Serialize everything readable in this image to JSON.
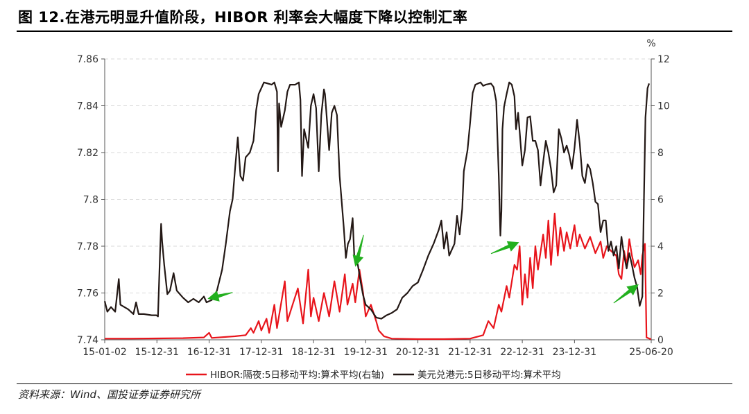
{
  "figure": {
    "title": "图 12.在港元明显升值阶段，HIBOR 利率会大幅度下降以控制汇率",
    "source": "资料来源：Wind、国投证券证券研究所"
  },
  "chart_data": {
    "type": "line",
    "x_tick_labels": [
      "15-01-02",
      "15-12-31",
      "16-12-31",
      "17-12-31",
      "18-12-31",
      "19-12-31",
      "20-12-31",
      "21-12-31",
      "22-12-31",
      "23-12-31",
      "25-06-20"
    ],
    "x_ticks": [
      2015.0,
      2016.0,
      2017.0,
      2018.0,
      2019.0,
      2020.0,
      2021.0,
      2022.0,
      2023.0,
      2024.0,
      2025.47
    ],
    "x_range": [
      2015.0,
      2025.47
    ],
    "y_left": {
      "range": [
        7.74,
        7.86
      ],
      "tick_labels": [
        "7.74",
        "7.76",
        "7.78",
        "7.8",
        "7.82",
        "7.84",
        "7.86"
      ]
    },
    "y_right": {
      "range": [
        0,
        12
      ],
      "unit": "%",
      "tick_labels": [
        "0",
        "2",
        "4",
        "6",
        "8",
        "10",
        "12"
      ]
    },
    "grid": "horizontal dashed",
    "legend_position": "bottom",
    "series": [
      {
        "name": "HIBOR:隔夜:5日移动平均:算术平均(右轴)",
        "axis": "right",
        "color": "#e8141b",
        "points": [
          [
            2015.0,
            0.05
          ],
          [
            2015.5,
            0.05
          ],
          [
            2016.0,
            0.06
          ],
          [
            2016.5,
            0.07
          ],
          [
            2016.9,
            0.1
          ],
          [
            2017.0,
            0.3
          ],
          [
            2017.05,
            0.08
          ],
          [
            2017.5,
            0.15
          ],
          [
            2017.7,
            0.2
          ],
          [
            2017.8,
            0.5
          ],
          [
            2017.85,
            0.3
          ],
          [
            2017.95,
            0.8
          ],
          [
            2018.0,
            0.4
          ],
          [
            2018.1,
            0.9
          ],
          [
            2018.15,
            0.3
          ],
          [
            2018.25,
            1.5
          ],
          [
            2018.3,
            0.5
          ],
          [
            2018.45,
            2.5
          ],
          [
            2018.5,
            0.8
          ],
          [
            2018.6,
            1.5
          ],
          [
            2018.7,
            2.2
          ],
          [
            2018.8,
            0.7
          ],
          [
            2018.9,
            3.0
          ],
          [
            2018.95,
            1.0
          ],
          [
            2019.0,
            1.8
          ],
          [
            2019.1,
            0.8
          ],
          [
            2019.2,
            2.0
          ],
          [
            2019.3,
            1.0
          ],
          [
            2019.4,
            2.5
          ],
          [
            2019.5,
            1.2
          ],
          [
            2019.6,
            2.8
          ],
          [
            2019.65,
            1.5
          ],
          [
            2019.75,
            2.4
          ],
          [
            2019.8,
            1.6
          ],
          [
            2019.88,
            3.0
          ],
          [
            2019.95,
            2.0
          ],
          [
            2020.0,
            1.0
          ],
          [
            2020.1,
            1.5
          ],
          [
            2020.2,
            0.8
          ],
          [
            2020.25,
            0.4
          ],
          [
            2020.35,
            0.15
          ],
          [
            2020.5,
            0.05
          ],
          [
            2021.0,
            0.03
          ],
          [
            2021.5,
            0.03
          ],
          [
            2022.0,
            0.05
          ],
          [
            2022.25,
            0.2
          ],
          [
            2022.35,
            0.8
          ],
          [
            2022.45,
            0.5
          ],
          [
            2022.55,
            1.5
          ],
          [
            2022.6,
            1.2
          ],
          [
            2022.7,
            2.3
          ],
          [
            2022.75,
            1.8
          ],
          [
            2022.85,
            3.2
          ],
          [
            2022.9,
            3.0
          ],
          [
            2022.95,
            4.0
          ],
          [
            2023.0,
            1.5
          ],
          [
            2023.05,
            2.8
          ],
          [
            2023.1,
            1.8
          ],
          [
            2023.15,
            3.5
          ],
          [
            2023.2,
            2.2
          ],
          [
            2023.25,
            4.0
          ],
          [
            2023.3,
            3.0
          ],
          [
            2023.4,
            4.5
          ],
          [
            2023.45,
            3.5
          ],
          [
            2023.5,
            5.1
          ],
          [
            2023.55,
            3.2
          ],
          [
            2023.62,
            5.4
          ],
          [
            2023.68,
            3.6
          ],
          [
            2023.73,
            4.8
          ],
          [
            2023.8,
            3.8
          ],
          [
            2023.85,
            4.6
          ],
          [
            2023.92,
            3.9
          ],
          [
            2024.0,
            4.9
          ],
          [
            2024.05,
            4.0
          ],
          [
            2024.1,
            4.5
          ],
          [
            2024.2,
            3.9
          ],
          [
            2024.3,
            4.4
          ],
          [
            2024.4,
            3.7
          ],
          [
            2024.5,
            4.2
          ],
          [
            2024.55,
            3.5
          ],
          [
            2024.62,
            4.0
          ],
          [
            2024.7,
            3.8
          ],
          [
            2024.8,
            3.6
          ],
          [
            2024.85,
            2.8
          ],
          [
            2024.9,
            2.6
          ],
          [
            2024.95,
            3.8
          ],
          [
            2025.0,
            3.2
          ],
          [
            2025.05,
            4.3
          ],
          [
            2025.1,
            3.6
          ],
          [
            2025.15,
            3.1
          ],
          [
            2025.22,
            3.4
          ],
          [
            2025.27,
            2.8
          ],
          [
            2025.3,
            3.6
          ],
          [
            2025.35,
            4.1
          ],
          [
            2025.38,
            0.1
          ],
          [
            2025.47,
            0.02
          ]
        ]
      },
      {
        "name": "美元兑港元:5日移动平均:算术平均",
        "axis": "left",
        "color": "#231815",
        "points": [
          [
            2015.0,
            7.7565
          ],
          [
            2015.05,
            7.752
          ],
          [
            2015.12,
            7.754
          ],
          [
            2015.2,
            7.752
          ],
          [
            2015.27,
            7.766
          ],
          [
            2015.3,
            7.755
          ],
          [
            2015.45,
            7.753
          ],
          [
            2015.55,
            7.751
          ],
          [
            2015.6,
            7.756
          ],
          [
            2015.65,
            7.751
          ],
          [
            2015.75,
            7.751
          ],
          [
            2015.9,
            7.7505
          ],
          [
            2015.99,
            7.7505
          ],
          [
            2016.02,
            7.75
          ],
          [
            2016.06,
            7.7775
          ],
          [
            2016.08,
            7.7895
          ],
          [
            2016.1,
            7.782
          ],
          [
            2016.14,
            7.772
          ],
          [
            2016.2,
            7.7595
          ],
          [
            2016.25,
            7.761
          ],
          [
            2016.32,
            7.7685
          ],
          [
            2016.38,
            7.761
          ],
          [
            2016.5,
            7.758
          ],
          [
            2016.6,
            7.756
          ],
          [
            2016.7,
            7.7575
          ],
          [
            2016.8,
            7.756
          ],
          [
            2016.9,
            7.7585
          ],
          [
            2016.95,
            7.756
          ],
          [
            2017.05,
            7.757
          ],
          [
            2017.15,
            7.761
          ],
          [
            2017.25,
            7.77
          ],
          [
            2017.32,
            7.781
          ],
          [
            2017.4,
            7.795
          ],
          [
            2017.45,
            7.8
          ],
          [
            2017.5,
            7.814
          ],
          [
            2017.55,
            7.8265
          ],
          [
            2017.6,
            7.81
          ],
          [
            2017.65,
            7.808
          ],
          [
            2017.7,
            7.818
          ],
          [
            2017.78,
            7.82
          ],
          [
            2017.85,
            7.825
          ],
          [
            2017.9,
            7.838
          ],
          [
            2017.95,
            7.845
          ],
          [
            2018.05,
            7.85
          ],
          [
            2018.2,
            7.849
          ],
          [
            2018.25,
            7.85
          ],
          [
            2018.3,
            7.846
          ],
          [
            2018.32,
            7.812
          ],
          [
            2018.34,
            7.841
          ],
          [
            2018.38,
            7.831
          ],
          [
            2018.45,
            7.838
          ],
          [
            2018.5,
            7.846
          ],
          [
            2018.55,
            7.849
          ],
          [
            2018.65,
            7.849
          ],
          [
            2018.72,
            7.85
          ],
          [
            2018.75,
            7.8425
          ],
          [
            2018.78,
            7.81
          ],
          [
            2018.82,
            7.83
          ],
          [
            2018.9,
            7.822
          ],
          [
            2018.95,
            7.84
          ],
          [
            2019.0,
            7.845
          ],
          [
            2019.05,
            7.839
          ],
          [
            2019.1,
            7.812
          ],
          [
            2019.15,
            7.836
          ],
          [
            2019.2,
            7.847
          ],
          [
            2019.22,
            7.845
          ],
          [
            2019.25,
            7.836
          ],
          [
            2019.3,
            7.821
          ],
          [
            2019.35,
            7.837
          ],
          [
            2019.4,
            7.84
          ],
          [
            2019.45,
            7.836
          ],
          [
            2019.5,
            7.81
          ],
          [
            2019.58,
            7.788
          ],
          [
            2019.62,
            7.775
          ],
          [
            2019.66,
            7.781
          ],
          [
            2019.7,
            7.783
          ],
          [
            2019.75,
            7.792
          ],
          [
            2019.78,
            7.776
          ],
          [
            2019.85,
            7.772
          ],
          [
            2019.9,
            7.765
          ],
          [
            2019.95,
            7.759
          ],
          [
            2020.0,
            7.755
          ],
          [
            2020.1,
            7.753
          ],
          [
            2020.2,
            7.7495
          ],
          [
            2020.3,
            7.749
          ],
          [
            2020.4,
            7.7505
          ],
          [
            2020.5,
            7.7515
          ],
          [
            2020.6,
            7.753
          ],
          [
            2020.7,
            7.758
          ],
          [
            2020.8,
            7.76
          ],
          [
            2020.9,
            7.763
          ],
          [
            2021.0,
            7.7645
          ],
          [
            2021.1,
            7.77
          ],
          [
            2021.2,
            7.776
          ],
          [
            2021.3,
            7.781
          ],
          [
            2021.4,
            7.787
          ],
          [
            2021.45,
            7.791
          ],
          [
            2021.5,
            7.779
          ],
          [
            2021.55,
            7.786
          ],
          [
            2021.6,
            7.776
          ],
          [
            2021.7,
            7.781
          ],
          [
            2021.75,
            7.793
          ],
          [
            2021.8,
            7.785
          ],
          [
            2021.85,
            7.796
          ],
          [
            2021.88,
            7.812
          ],
          [
            2021.95,
            7.821
          ],
          [
            2022.0,
            7.8325
          ],
          [
            2022.05,
            7.8455
          ],
          [
            2022.1,
            7.849
          ],
          [
            2022.2,
            7.85
          ],
          [
            2022.25,
            7.8485
          ],
          [
            2022.3,
            7.849
          ],
          [
            2022.4,
            7.8495
          ],
          [
            2022.45,
            7.848
          ],
          [
            2022.5,
            7.842
          ],
          [
            2022.55,
            7.81
          ],
          [
            2022.58,
            7.7845
          ],
          [
            2022.6,
            7.795
          ],
          [
            2022.62,
            7.83
          ],
          [
            2022.65,
            7.8395
          ],
          [
            2022.7,
            7.845
          ],
          [
            2022.75,
            7.85
          ],
          [
            2022.8,
            7.849
          ],
          [
            2022.85,
            7.844
          ],
          [
            2022.88,
            7.83
          ],
          [
            2022.92,
            7.837
          ],
          [
            2022.95,
            7.829
          ],
          [
            2023.0,
            7.8145
          ],
          [
            2023.05,
            7.821
          ],
          [
            2023.1,
            7.835
          ],
          [
            2023.15,
            7.8355
          ],
          [
            2023.2,
            7.825
          ],
          [
            2023.25,
            7.825
          ],
          [
            2023.3,
            7.821
          ],
          [
            2023.35,
            7.806
          ],
          [
            2023.4,
            7.816
          ],
          [
            2023.45,
            7.825
          ],
          [
            2023.5,
            7.82
          ],
          [
            2023.55,
            7.813
          ],
          [
            2023.6,
            7.803
          ],
          [
            2023.65,
            7.806
          ],
          [
            2023.7,
            7.83
          ],
          [
            2023.75,
            7.826
          ],
          [
            2023.8,
            7.82
          ],
          [
            2023.85,
            7.823
          ],
          [
            2023.9,
            7.819
          ],
          [
            2023.95,
            7.813
          ],
          [
            2024.0,
            7.822
          ],
          [
            2024.05,
            7.834
          ],
          [
            2024.1,
            7.824
          ],
          [
            2024.15,
            7.81
          ],
          [
            2024.2,
            7.807
          ],
          [
            2024.25,
            7.815
          ],
          [
            2024.3,
            7.813
          ],
          [
            2024.35,
            7.807
          ],
          [
            2024.4,
            7.799
          ],
          [
            2024.45,
            7.798
          ],
          [
            2024.5,
            7.786
          ],
          [
            2024.55,
            7.791
          ],
          [
            2024.6,
            7.791
          ],
          [
            2024.65,
            7.778
          ],
          [
            2024.7,
            7.782
          ],
          [
            2024.75,
            7.776
          ],
          [
            2024.8,
            7.78
          ],
          [
            2024.85,
            7.7705
          ],
          [
            2024.9,
            7.784
          ],
          [
            2024.95,
            7.776
          ],
          [
            2025.0,
            7.7705
          ],
          [
            2025.05,
            7.777
          ],
          [
            2025.1,
            7.772
          ],
          [
            2025.15,
            7.7665
          ],
          [
            2025.2,
            7.7625
          ],
          [
            2025.25,
            7.7545
          ],
          [
            2025.3,
            7.7585
          ],
          [
            2025.33,
            7.8
          ],
          [
            2025.36,
            7.835
          ],
          [
            2025.4,
            7.8475
          ],
          [
            2025.43,
            7.8495
          ]
        ]
      }
    ],
    "annotations": [
      {
        "type": "arrow",
        "color": "#22b01e",
        "from": [
          2017.45,
          7.7602
        ],
        "to": [
          2016.97,
          7.7575
        ]
      },
      {
        "type": "arrow",
        "color": "#22b01e",
        "from": [
          2019.96,
          7.7848
        ],
        "to": [
          2019.8,
          7.7712
        ]
      },
      {
        "type": "arrow",
        "color": "#22b01e",
        "from": [
          2022.4,
          7.7768
        ],
        "to": [
          2022.94,
          7.7817
        ]
      },
      {
        "type": "arrow",
        "color": "#22b01e",
        "from": [
          2024.75,
          7.7557
        ],
        "to": [
          2025.23,
          7.7637
        ]
      }
    ]
  }
}
